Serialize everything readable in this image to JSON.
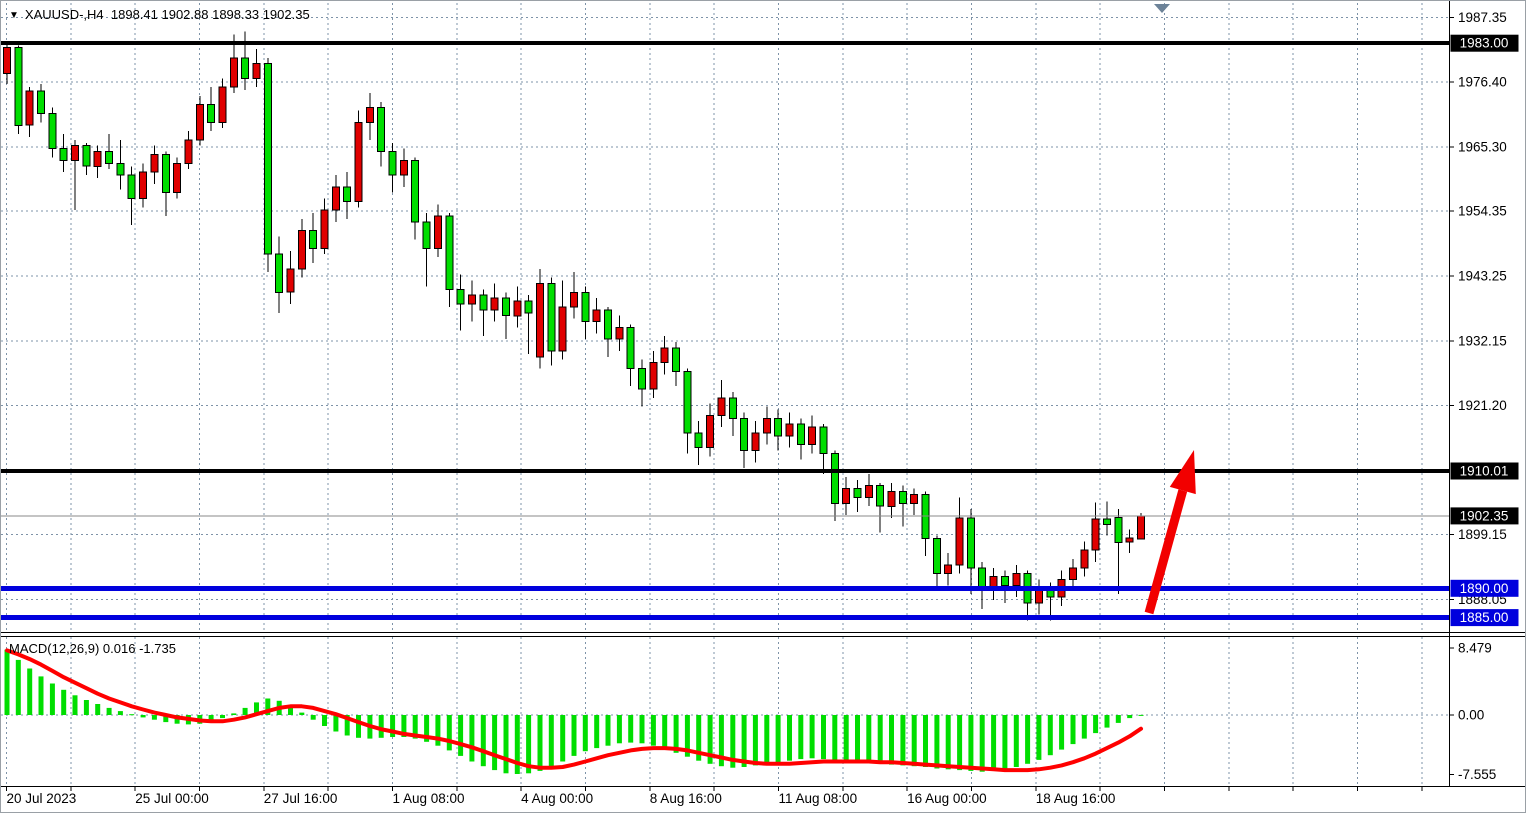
{
  "window": {
    "title_symbol": "XAUUSD-,H4",
    "title_ohlc": "1898.41 1902.88 1898.33 1902.35",
    "dropdown_glyph": "▼"
  },
  "macd": {
    "label": "MACD(12,26,9) 0.016 -1.735"
  },
  "colors": {
    "bull": "#e00000",
    "bear": "#00de00",
    "wick": "#000000",
    "grid": "#7e93a8",
    "level_black": "#000000",
    "level_blue": "#0000dd",
    "current_price_line": "#8a8a8a",
    "macd_hist": "#00de00",
    "macd_signal": "#ff0000",
    "arrow": "#f20000",
    "badge_dark_bg": "#000000",
    "badge_blue_bg": "#0000dd",
    "badge_text": "#ffffff",
    "axis_text": "#000000",
    "scroll_marker": "#6d8398",
    "panel_bg": "#ffffff"
  },
  "price_axis": {
    "ticks": [
      {
        "label": "1987.35",
        "price": 1987.35
      },
      {
        "label": "1976.40",
        "price": 1976.4
      },
      {
        "label": "1965.30",
        "price": 1965.3
      },
      {
        "label": "1954.35",
        "price": 1954.35
      },
      {
        "label": "1943.25",
        "price": 1943.25
      },
      {
        "label": "1932.15",
        "price": 1932.15
      },
      {
        "label": "1921.20",
        "price": 1921.2
      },
      {
        "label": "1899.15",
        "price": 1899.15
      },
      {
        "label": "1888.05",
        "price": 1888.05
      }
    ],
    "badges": [
      {
        "label": "1983.00",
        "price": 1983.0,
        "bg": "dark"
      },
      {
        "label": "1910.01",
        "price": 1910.01,
        "bg": "dark"
      },
      {
        "label": "1902.35",
        "price": 1902.35,
        "bg": "dark"
      },
      {
        "label": "1890.00",
        "price": 1890.0,
        "bg": "blue"
      },
      {
        "label": "1885.00",
        "price": 1885.0,
        "bg": "blue"
      }
    ]
  },
  "macd_axis": {
    "ticks": [
      {
        "label": "8.479",
        "value": 8.479,
        "grid": false
      },
      {
        "label": "0.00",
        "value": 0,
        "grid": true
      },
      {
        "label": "-7.555",
        "value": -7.555,
        "grid": false
      }
    ]
  },
  "time_axis": {
    "labels": [
      "20 Jul 2023",
      "25 Jul 00:00",
      "27 Jul 16:00",
      "1 Aug 08:00",
      "4 Aug 00:00",
      "8 Aug 16:00",
      "11 Aug 08:00",
      "16 Aug 00:00",
      "18 Aug 16:00"
    ]
  },
  "chart_data": {
    "type": "candlestick",
    "symbol": "XAUUSD-",
    "timeframe": "H4",
    "title": "XAUUSD-,H4 1898.41 1902.88 1898.33 1902.35",
    "color_scheme": {
      "bullish_fill": "red",
      "bearish_fill": "green"
    },
    "price_range": [
      1885.0,
      1987.35
    ],
    "current_price": 1902.35,
    "last_ohlc": {
      "open": 1898.41,
      "high": 1902.88,
      "low": 1898.33,
      "close": 1902.35
    },
    "horizontal_levels": [
      {
        "price": 1983.0,
        "color": "black",
        "width": 4
      },
      {
        "price": 1910.01,
        "color": "black",
        "width": 4
      },
      {
        "price": 1890.0,
        "color": "blue",
        "width": 5
      },
      {
        "price": 1885.0,
        "color": "blue",
        "width": 5
      }
    ],
    "candles": [
      [
        1977.8,
        1983.2,
        1976.0,
        1982.3
      ],
      [
        1982.3,
        1982.6,
        1967.5,
        1969.0
      ],
      [
        1969.0,
        1975.5,
        1967.0,
        1974.8
      ],
      [
        1974.8,
        1976.0,
        1969.5,
        1971.0
      ],
      [
        1971.0,
        1972.0,
        1963.5,
        1965.0
      ],
      [
        1965.0,
        1967.5,
        1961.0,
        1963.0
      ],
      [
        1963.0,
        1966.5,
        1954.5,
        1965.5
      ],
      [
        1965.5,
        1966.0,
        1960.5,
        1962.0
      ],
      [
        1962.0,
        1965.5,
        1960.0,
        1964.5
      ],
      [
        1964.5,
        1967.5,
        1961.5,
        1962.5
      ],
      [
        1962.5,
        1966.5,
        1958.0,
        1960.5
      ],
      [
        1960.5,
        1962.0,
        1952.0,
        1956.5
      ],
      [
        1956.5,
        1962.5,
        1955.0,
        1961.0
      ],
      [
        1961.0,
        1965.5,
        1959.0,
        1964.0
      ],
      [
        1964.0,
        1964.5,
        1953.5,
        1957.5
      ],
      [
        1957.5,
        1963.5,
        1956.5,
        1962.5
      ],
      [
        1962.5,
        1968.0,
        1961.5,
        1966.5
      ],
      [
        1966.5,
        1974.0,
        1965.5,
        1972.5
      ],
      [
        1972.5,
        1975.5,
        1968.0,
        1969.5
      ],
      [
        1969.5,
        1977.0,
        1968.5,
        1975.5
      ],
      [
        1975.5,
        1984.5,
        1974.5,
        1980.5
      ],
      [
        1980.5,
        1985.0,
        1975.0,
        1977.0
      ],
      [
        1977.0,
        1982.0,
        1975.5,
        1979.5
      ],
      [
        1979.5,
        1980.5,
        1944.0,
        1947.0
      ],
      [
        1947.0,
        1950.0,
        1937.0,
        1940.5
      ],
      [
        1940.5,
        1947.5,
        1938.5,
        1944.5
      ],
      [
        1944.5,
        1953.0,
        1943.0,
        1951.0
      ],
      [
        1951.0,
        1954.0,
        1945.5,
        1948.0
      ],
      [
        1948.0,
        1956.5,
        1947.0,
        1954.5
      ],
      [
        1954.5,
        1960.5,
        1952.5,
        1958.5
      ],
      [
        1958.5,
        1961.0,
        1953.0,
        1956.0
      ],
      [
        1956.0,
        1971.5,
        1955.0,
        1969.5
      ],
      [
        1969.5,
        1974.5,
        1966.5,
        1972.0
      ],
      [
        1972.0,
        1973.0,
        1962.0,
        1964.5
      ],
      [
        1964.5,
        1966.0,
        1957.5,
        1960.5
      ],
      [
        1960.5,
        1965.0,
        1958.5,
        1963.0
      ],
      [
        1963.0,
        1963.5,
        1949.5,
        1952.5
      ],
      [
        1952.5,
        1954.0,
        1941.5,
        1948.0
      ],
      [
        1948.0,
        1955.5,
        1946.5,
        1953.5
      ],
      [
        1953.5,
        1954.0,
        1938.0,
        1941.0
      ],
      [
        1941.0,
        1943.5,
        1934.0,
        1938.5
      ],
      [
        1938.5,
        1942.5,
        1935.5,
        1940.0
      ],
      [
        1940.0,
        1941.0,
        1933.0,
        1937.5
      ],
      [
        1937.5,
        1942.0,
        1935.5,
        1939.5
      ],
      [
        1939.5,
        1940.5,
        1932.5,
        1936.5
      ],
      [
        1936.5,
        1941.5,
        1934.5,
        1939.0
      ],
      [
        1939.0,
        1940.0,
        1930.0,
        1937.0
      ],
      [
        1929.5,
        1944.5,
        1927.5,
        1942.0
      ],
      [
        1942.0,
        1943.0,
        1928.0,
        1930.5
      ],
      [
        1930.5,
        1942.5,
        1929.0,
        1938.0
      ],
      [
        1938.0,
        1944.0,
        1936.0,
        1940.5
      ],
      [
        1940.5,
        1941.5,
        1932.5,
        1935.5
      ],
      [
        1935.5,
        1939.5,
        1933.5,
        1937.5
      ],
      [
        1937.5,
        1938.0,
        1929.5,
        1932.5
      ],
      [
        1932.5,
        1936.5,
        1930.5,
        1934.5
      ],
      [
        1934.5,
        1935.0,
        1924.5,
        1927.5
      ],
      [
        1927.5,
        1929.0,
        1921.0,
        1924.0
      ],
      [
        1924.0,
        1930.5,
        1922.5,
        1928.5
      ],
      [
        1928.5,
        1933.0,
        1926.5,
        1931.0
      ],
      [
        1931.0,
        1932.0,
        1924.5,
        1927.0
      ],
      [
        1927.0,
        1927.5,
        1913.0,
        1916.5
      ],
      [
        1916.5,
        1918.5,
        1911.0,
        1914.0
      ],
      [
        1914.0,
        1921.5,
        1912.5,
        1919.5
      ],
      [
        1919.5,
        1925.5,
        1917.5,
        1922.5
      ],
      [
        1922.5,
        1923.5,
        1916.0,
        1919.0
      ],
      [
        1919.0,
        1920.0,
        1910.5,
        1913.5
      ],
      [
        1913.5,
        1918.5,
        1911.5,
        1916.5
      ],
      [
        1916.5,
        1921.0,
        1914.5,
        1919.0
      ],
      [
        1919.0,
        1920.5,
        1913.5,
        1916.0
      ],
      [
        1916.0,
        1920.0,
        1914.0,
        1918.0
      ],
      [
        1918.0,
        1919.0,
        1912.0,
        1914.5
      ],
      [
        1914.5,
        1919.5,
        1913.0,
        1917.5
      ],
      [
        1917.5,
        1918.0,
        1909.5,
        1913.0
      ],
      [
        1913.0,
        1913.5,
        1901.5,
        1904.5
      ],
      [
        1904.5,
        1909.0,
        1902.5,
        1907.0
      ],
      [
        1907.0,
        1908.5,
        1903.0,
        1905.5
      ],
      [
        1905.5,
        1909.5,
        1904.0,
        1907.5
      ],
      [
        1907.5,
        1908.0,
        1899.5,
        1904.0
      ],
      [
        1904.0,
        1908.0,
        1902.0,
        1906.5
      ],
      [
        1906.5,
        1907.5,
        1900.5,
        1904.5
      ],
      [
        1904.5,
        1907.0,
        1902.5,
        1906.0
      ],
      [
        1906.0,
        1906.5,
        1895.5,
        1898.5
      ],
      [
        1898.5,
        1899.0,
        1889.5,
        1892.5
      ],
      [
        1892.5,
        1896.0,
        1890.5,
        1894.0
      ],
      [
        1894.0,
        1905.5,
        1892.5,
        1902.0
      ],
      [
        1902.0,
        1903.5,
        1889.0,
        1893.5
      ],
      [
        1893.5,
        1894.5,
        1886.5,
        1890.0
      ],
      [
        1890.0,
        1893.5,
        1888.0,
        1892.0
      ],
      [
        1892.0,
        1893.0,
        1887.5,
        1890.5
      ],
      [
        1890.5,
        1894.0,
        1888.5,
        1892.5
      ],
      [
        1892.5,
        1893.0,
        1884.5,
        1887.5
      ],
      [
        1887.5,
        1891.5,
        1885.5,
        1890.0
      ],
      [
        1890.0,
        1891.0,
        1884.5,
        1888.5
      ],
      [
        1888.5,
        1893.0,
        1887.0,
        1891.5
      ],
      [
        1891.5,
        1895.0,
        1889.5,
        1893.5
      ],
      [
        1893.5,
        1898.0,
        1892.0,
        1896.5
      ],
      [
        1896.5,
        1904.6,
        1894.5,
        1901.8
      ],
      [
        1901.8,
        1904.8,
        1899.0,
        1900.9
      ],
      [
        1902.1,
        1903.5,
        1889.0,
        1897.8
      ],
      [
        1897.9,
        1900.0,
        1896.0,
        1898.6
      ],
      [
        1898.41,
        1902.88,
        1898.33,
        1902.35
      ]
    ],
    "indicator": {
      "name": "MACD",
      "params": [
        12,
        26,
        9
      ],
      "last_values": {
        "macd": 0.016,
        "signal": -1.735
      },
      "range": [
        -7.555,
        8.479
      ],
      "histogram": [
        8.3,
        7.0,
        5.9,
        4.9,
        4.0,
        3.2,
        2.5,
        1.9,
        1.4,
        0.9,
        0.5,
        0.1,
        -0.3,
        -0.6,
        -0.9,
        -1.1,
        -1.2,
        -1.1,
        -0.8,
        -0.4,
        0.2,
        0.9,
        1.6,
        2.1,
        1.8,
        1.1,
        0.3,
        -0.6,
        -1.4,
        -2.1,
        -2.6,
        -2.9,
        -3.0,
        -2.9,
        -2.8,
        -2.8,
        -3.0,
        -3.4,
        -3.9,
        -4.5,
        -5.2,
        -5.9,
        -6.5,
        -7.0,
        -7.4,
        -7.5,
        -7.4,
        -7.1,
        -6.6,
        -5.9,
        -5.2,
        -4.6,
        -4.2,
        -3.9,
        -3.6,
        -3.5,
        -3.6,
        -3.9,
        -4.3,
        -4.8,
        -5.3,
        -5.8,
        -6.2,
        -6.5,
        -6.7,
        -6.6,
        -6.4,
        -6.2,
        -6.0,
        -5.8,
        -5.6,
        -5.5,
        -5.6,
        -5.7,
        -5.9,
        -6.0,
        -6.1,
        -6.2,
        -6.3,
        -6.4,
        -6.5,
        -6.6,
        -6.8,
        -6.9,
        -7.0,
        -7.1,
        -7.2,
        -7.1,
        -6.9,
        -6.6,
        -6.2,
        -5.7,
        -5.1,
        -4.4,
        -3.7,
        -3.0,
        -2.3,
        -1.6,
        -1.0,
        -0.4,
        0.016
      ],
      "signal": [
        8.2,
        7.7,
        7.1,
        6.4,
        5.6,
        4.8,
        4.1,
        3.4,
        2.7,
        2.1,
        1.6,
        1.1,
        0.7,
        0.3,
        0.0,
        -0.3,
        -0.5,
        -0.7,
        -0.8,
        -0.8,
        -0.6,
        -0.3,
        0.1,
        0.5,
        0.9,
        1.1,
        1.1,
        0.9,
        0.5,
        0.1,
        -0.4,
        -0.9,
        -1.4,
        -1.8,
        -2.1,
        -2.4,
        -2.6,
        -2.8,
        -3.0,
        -3.3,
        -3.7,
        -4.1,
        -4.6,
        -5.1,
        -5.6,
        -6.1,
        -6.5,
        -6.7,
        -6.7,
        -6.6,
        -6.3,
        -5.9,
        -5.5,
        -5.1,
        -4.8,
        -4.5,
        -4.3,
        -4.2,
        -4.2,
        -4.3,
        -4.5,
        -4.8,
        -5.1,
        -5.4,
        -5.7,
        -5.9,
        -6.1,
        -6.2,
        -6.2,
        -6.2,
        -6.1,
        -6.0,
        -5.9,
        -5.9,
        -5.9,
        -5.9,
        -5.9,
        -6.0,
        -6.0,
        -6.1,
        -6.2,
        -6.3,
        -6.4,
        -6.5,
        -6.6,
        -6.7,
        -6.8,
        -6.9,
        -7.0,
        -7.0,
        -7.0,
        -6.9,
        -6.7,
        -6.4,
        -6.0,
        -5.5,
        -4.9,
        -4.2,
        -3.5,
        -2.7,
        -1.735
      ]
    },
    "annotation": {
      "type": "arrow-up",
      "from_price": 1885.0,
      "to_price": 1911.5,
      "color": "#f20000"
    }
  }
}
